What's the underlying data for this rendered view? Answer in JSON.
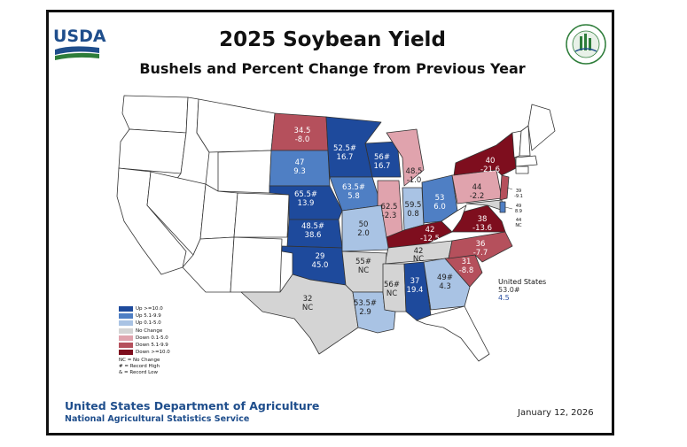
{
  "header": {
    "logo_text": "USDA",
    "seal_text": "AGRICULTURE COUNTS",
    "title": "2025 Soybean Yield",
    "subtitle": "Bushels and Percent Change from Previous Year"
  },
  "legend": {
    "items": [
      {
        "label": "Up >=10.0",
        "color": "#1e4a9c"
      },
      {
        "label": "Up 5.1-9.9",
        "color": "#4f7fc4"
      },
      {
        "label": "Up 0.1-5.0",
        "color": "#a9c3e4"
      },
      {
        "label": "No Change",
        "color": "#d4d4d4"
      },
      {
        "label": "Down 0.1-5.0",
        "color": "#e0a3ad"
      },
      {
        "label": "Down 5.1-9.9",
        "color": "#b5505c"
      },
      {
        "label": "Down >=10.0",
        "color": "#7e0e1e"
      }
    ],
    "notes": [
      "NC = No Change",
      "# = Record High",
      "& = Record Low"
    ]
  },
  "states": {
    "MN": {
      "yield": "52.5#",
      "change": "16.7"
    },
    "ND": {
      "yield": "34.5",
      "change": "-8.0"
    },
    "SD": {
      "yield": "47",
      "change": "9.3"
    },
    "NE": {
      "yield": "65.5#",
      "change": "13.9"
    },
    "KS": {
      "yield": "48.5#",
      "change": "38.6"
    },
    "OK": {
      "yield": "29",
      "change": "45.0"
    },
    "TX": {
      "yield": "32",
      "change": "NC"
    },
    "IA": {
      "yield": "63.5#",
      "change": "5.8"
    },
    "MO": {
      "yield": "50",
      "change": "2.0"
    },
    "AR": {
      "yield": "55#",
      "change": "NC"
    },
    "LA": {
      "yield": "53.5#",
      "change": "2.9"
    },
    "WI": {
      "yield": "56#",
      "change": "16.7"
    },
    "MI": {
      "yield": "48.5",
      "change": "-1.0"
    },
    "IL": {
      "yield": "62.5",
      "change": "-2.3"
    },
    "IN": {
      "yield": "59.5",
      "change": "0.8"
    },
    "OH": {
      "yield": "53",
      "change": "6.0"
    },
    "KY": {
      "yield": "42",
      "change": "-12.5"
    },
    "TN": {
      "yield": "42",
      "change": "NC"
    },
    "MS": {
      "yield": "56#",
      "change": "NC"
    },
    "AL": {
      "yield": "37",
      "change": "19.4"
    },
    "GA": {
      "yield": "49#",
      "change": "4.3"
    },
    "SC": {
      "yield": "31",
      "change": "-8.8"
    },
    "NC": {
      "yield": "36",
      "change": "-7.7"
    },
    "VA": {
      "yield": "38",
      "change": "-13.6"
    },
    "PA": {
      "yield": "44",
      "change": "-2.2"
    },
    "NY": {
      "yield": "40",
      "change": "-21.6"
    },
    "NJ": {
      "yield": "39",
      "change": "-9.1"
    },
    "DE": {
      "yield": "49",
      "change": "8.9"
    },
    "MD": {
      "yield": "44",
      "change": "NC"
    }
  },
  "us_total": {
    "label": "United States",
    "yield": "53.0#",
    "change": "4.5"
  },
  "footer": {
    "department": "United States Department of Agriculture",
    "service": "National Agricultural Statistics Service",
    "date": "January 12, 2026"
  },
  "colors": {
    "up_10": "#1e4a9c",
    "up_5": "#4f7fc4",
    "up_0": "#a9c3e4",
    "no_change": "#d4d4d4",
    "down_0": "#e0a3ad",
    "down_5": "#b5505c",
    "down_10": "#7e0e1e",
    "none": "#ffffff"
  }
}
